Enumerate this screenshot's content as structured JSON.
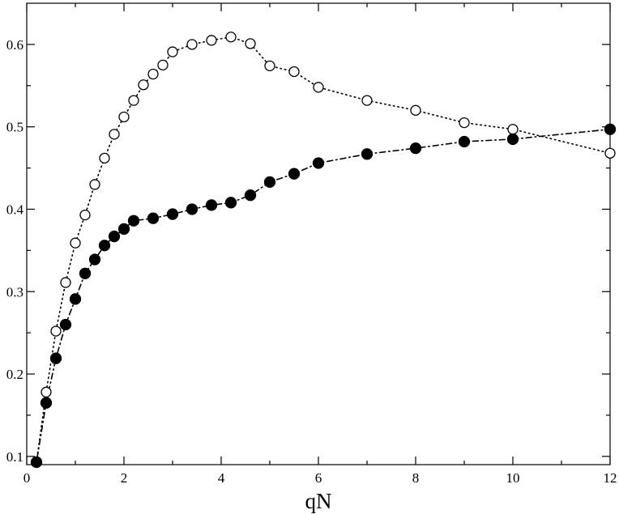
{
  "chart_data": {
    "type": "scatter",
    "title": "",
    "xlabel": "qN",
    "ylabel": "",
    "xlim": [
      0,
      12
    ],
    "ylim": [
      0.09,
      0.65
    ],
    "x_ticks_major": [
      0,
      2,
      4,
      6,
      8,
      10,
      12
    ],
    "x_ticks_minor": [
      1,
      3,
      5,
      7,
      9,
      11
    ],
    "y_ticks_major": [
      0.1,
      0.2,
      0.3,
      0.4,
      0.5,
      0.6
    ],
    "y_ticks_minor": [
      0.15,
      0.25,
      0.35,
      0.45,
      0.55
    ],
    "x_tick_labels": [
      "0",
      "2",
      "4",
      "6",
      "8",
      "10",
      "12"
    ],
    "y_tick_labels": [
      "0.1",
      "0.2",
      "0.3",
      "0.4",
      "0.5",
      "0.6"
    ],
    "grid": false,
    "legend": "none",
    "series": [
      {
        "marker": "open-circle",
        "line": "dotted",
        "color": "#000000",
        "x": [
          0.2,
          0.4,
          0.6,
          0.8,
          1.0,
          1.2,
          1.4,
          1.6,
          1.8,
          2.0,
          2.2,
          2.4,
          2.6,
          2.8,
          3.0,
          3.4,
          3.8,
          4.2,
          4.6,
          5.0,
          5.5,
          6.0,
          7.0,
          8.0,
          9.0,
          10.0,
          12.0
        ],
        "y": [
          0.093,
          0.178,
          0.252,
          0.311,
          0.359,
          0.393,
          0.43,
          0.462,
          0.491,
          0.512,
          0.532,
          0.551,
          0.564,
          0.575,
          0.591,
          0.6,
          0.605,
          0.609,
          0.601,
          0.574,
          0.567,
          0.548,
          0.532,
          0.52,
          0.505,
          0.497,
          0.468
        ]
      },
      {
        "marker": "filled-circle",
        "line": "dash-dot",
        "color": "#000000",
        "x": [
          0.2,
          0.4,
          0.6,
          0.8,
          1.0,
          1.2,
          1.4,
          1.6,
          1.8,
          2.0,
          2.2,
          2.6,
          3.0,
          3.4,
          3.8,
          4.2,
          4.6,
          5.0,
          5.5,
          6.0,
          7.0,
          8.0,
          9.0,
          10.0,
          12.0
        ],
        "y": [
          0.093,
          0.165,
          0.219,
          0.26,
          0.291,
          0.322,
          0.339,
          0.356,
          0.367,
          0.376,
          0.386,
          0.389,
          0.394,
          0.4,
          0.405,
          0.408,
          0.417,
          0.433,
          0.443,
          0.456,
          0.467,
          0.474,
          0.482,
          0.485,
          0.497
        ]
      }
    ]
  }
}
